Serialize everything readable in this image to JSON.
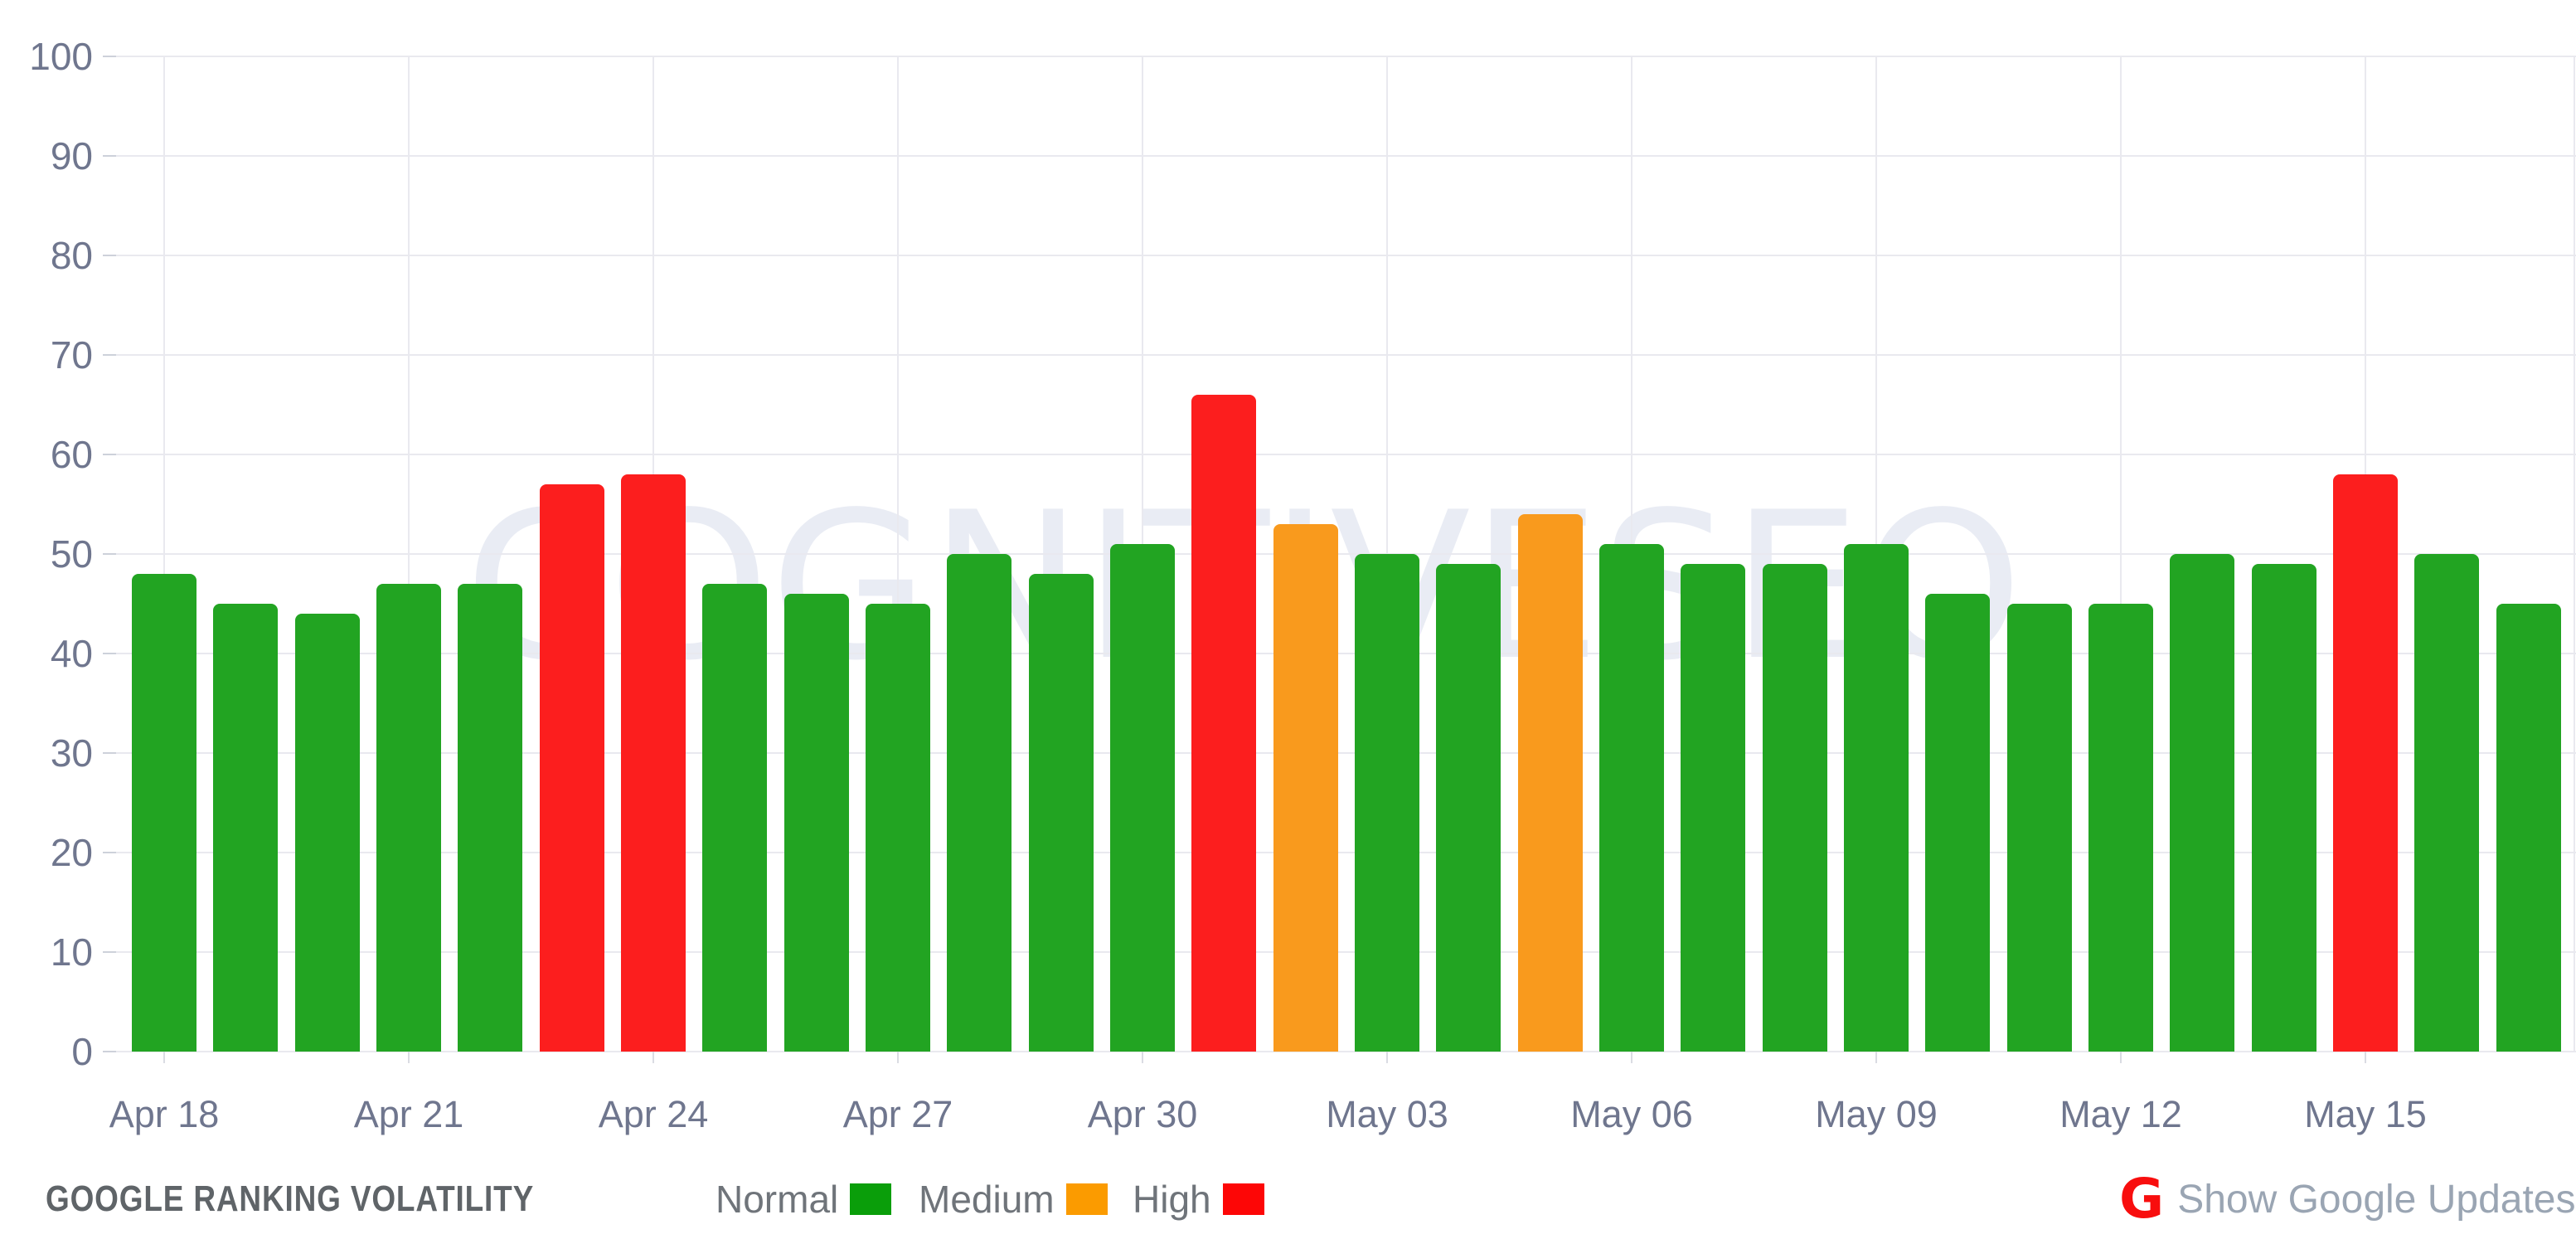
{
  "chart_data": {
    "type": "bar",
    "title": "GOOGLE RANKING VOLATILITY",
    "x": [
      "Apr 18",
      "Apr 19",
      "Apr 20",
      "Apr 21",
      "Apr 22",
      "Apr 23",
      "Apr 24",
      "Apr 25",
      "Apr 26",
      "Apr 27",
      "Apr 28",
      "Apr 29",
      "Apr 30",
      "May 01",
      "May 02",
      "May 03",
      "May 04",
      "May 05",
      "May 06",
      "May 07",
      "May 08",
      "May 09",
      "May 10",
      "May 11",
      "May 12",
      "May 13",
      "May 14",
      "May 15",
      "May 16",
      "May 17"
    ],
    "series": [
      {
        "name": "Google Ranking Volatility",
        "values": [
          48,
          45,
          44,
          47,
          47,
          57,
          58,
          47,
          46,
          45,
          50,
          48,
          51,
          66,
          53,
          50,
          49,
          54,
          51,
          49,
          49,
          51,
          46,
          45,
          45,
          50,
          49,
          58,
          50,
          45
        ]
      }
    ],
    "levels": [
      "normal",
      "normal",
      "normal",
      "normal",
      "normal",
      "high",
      "high",
      "normal",
      "normal",
      "normal",
      "normal",
      "normal",
      "normal",
      "high",
      "medium",
      "normal",
      "normal",
      "medium",
      "normal",
      "normal",
      "normal",
      "normal",
      "normal",
      "normal",
      "normal",
      "normal",
      "normal",
      "high",
      "normal",
      "normal"
    ],
    "colors": {
      "normal": "#22A422",
      "medium": "#F99A1D",
      "high": "#FC1E1E"
    },
    "x_tick_indices": [
      0,
      3,
      6,
      9,
      12,
      15,
      18,
      21,
      24,
      27
    ],
    "x_tick_labels": [
      "Apr 18",
      "Apr 21",
      "Apr 24",
      "Apr 27",
      "Apr 30",
      "May 03",
      "May 06",
      "May 09",
      "May 12",
      "May 15"
    ],
    "y_ticks": [
      0,
      10,
      20,
      30,
      40,
      50,
      60,
      70,
      80,
      90,
      100
    ],
    "ylim": [
      0,
      100
    ],
    "grid": true,
    "legend_position": "bottom"
  },
  "watermark": {
    "text": "COGNITIVESEO",
    "color": "#E9ECF4"
  },
  "footer": {
    "title": "GOOGLE RANKING VOLATILITY",
    "legend": [
      {
        "label": "Normal",
        "color": "#0A9E0A"
      },
      {
        "label": "Medium",
        "color": "#FB9B00"
      },
      {
        "label": "High",
        "color": "#FD0606"
      }
    ],
    "google_updates": {
      "icon": "G",
      "icon_color": "#F80E0E",
      "label": "Show Google Updates",
      "label_color": "#9AA5B3"
    }
  },
  "axis": {
    "label_color": "#6F768E",
    "grid_color": "#E9E9EF",
    "tick_color": "#CDD1DA"
  }
}
